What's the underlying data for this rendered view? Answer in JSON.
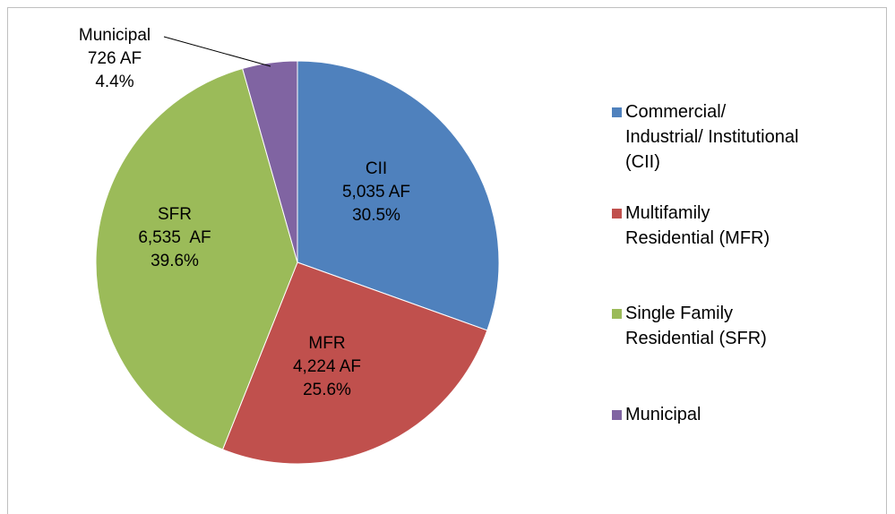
{
  "chart_data": {
    "type": "pie",
    "categories": [
      "Commercial/ Industrial/ Institutional (CII)",
      "Multifamily Residential (MFR)",
      "Single Family Residential (SFR)",
      "Municipal"
    ],
    "short_labels": [
      "CII",
      "MFR",
      "SFR",
      "Municipal"
    ],
    "values": [
      5035,
      4224,
      6535,
      726
    ],
    "value_labels": [
      "5,035 AF",
      "4,224 AF",
      "6,535  AF",
      "726 AF"
    ],
    "percent_labels": [
      "30.5%",
      "25.6%",
      "39.6%",
      "4.4%"
    ],
    "colors": [
      "#4f81bd",
      "#c0504d",
      "#9bbb59",
      "#8064a2"
    ],
    "legend": "right"
  }
}
